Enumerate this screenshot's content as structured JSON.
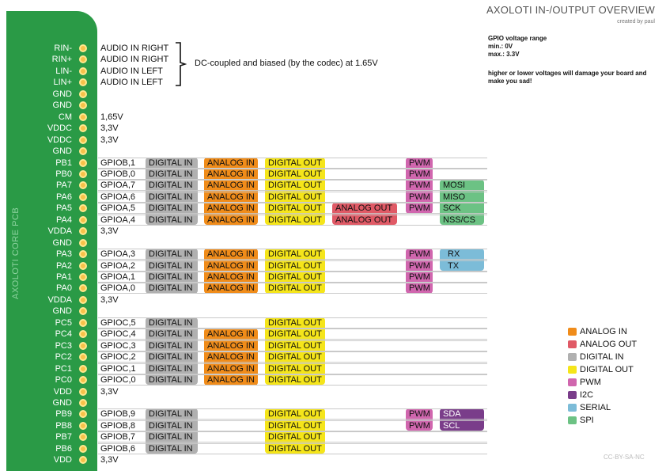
{
  "header": {
    "title": "AXOLOTI IN-/OUTPUT OVERVIEW",
    "credit": "created by paul"
  },
  "board_label": "AXOLOTI CORE PCB",
  "gpio_info": {
    "line1": "GPIO voltage range",
    "line2": "min.: 0V",
    "line3": "max.: 3.3V"
  },
  "warning": "higher or lower voltages will damage your board and make you sad!",
  "audio_note": "DC-coupled and biased (by the codec) at 1.65V",
  "pins": [
    {
      "name": "RIN-",
      "desc": "AUDIO IN RIGHT"
    },
    {
      "name": "RIN+",
      "desc": "AUDIO IN RIGHT"
    },
    {
      "name": "LIN-",
      "desc": "AUDIO IN LEFT"
    },
    {
      "name": "LIN+",
      "desc": "AUDIO IN LEFT"
    },
    {
      "name": "GND",
      "desc": ""
    },
    {
      "name": "GND",
      "desc": ""
    },
    {
      "name": "CM",
      "desc": "1,65V"
    },
    {
      "name": "VDDC",
      "desc": "3,3V"
    },
    {
      "name": "VDDC",
      "desc": "3,3V"
    },
    {
      "name": "GND",
      "desc": ""
    },
    {
      "name": "PB1",
      "desc": "GPIOB,1",
      "funcs": [
        "DIGITAL IN",
        "ANALOG IN",
        "DIGITAL OUT",
        "",
        "PWM",
        ""
      ]
    },
    {
      "name": "PB0",
      "desc": "GPIOB,0",
      "funcs": [
        "DIGITAL IN",
        "ANALOG IN",
        "DIGITAL OUT",
        "",
        "PWM",
        ""
      ]
    },
    {
      "name": "PA7",
      "desc": "GPIOA,7",
      "funcs": [
        "DIGITAL IN",
        "ANALOG IN",
        "DIGITAL OUT",
        "",
        "PWM",
        "MOSI"
      ]
    },
    {
      "name": "PA6",
      "desc": "GPIOA,6",
      "funcs": [
        "DIGITAL IN",
        "ANALOG IN",
        "DIGITAL OUT",
        "",
        "PWM",
        "MISO"
      ]
    },
    {
      "name": "PA5",
      "desc": "GPIOA,5",
      "funcs": [
        "DIGITAL IN",
        "ANALOG IN",
        "DIGITAL OUT",
        "ANALOG OUT",
        "PWM",
        "SCK"
      ]
    },
    {
      "name": "PA4",
      "desc": "GPIOA,4",
      "funcs": [
        "DIGITAL IN",
        "ANALOG IN",
        "DIGITAL OUT",
        "ANALOG OUT",
        "",
        "NSS/CS"
      ]
    },
    {
      "name": "VDDA",
      "desc": "3,3V"
    },
    {
      "name": "GND",
      "desc": ""
    },
    {
      "name": "PA3",
      "desc": "GPIOA,3",
      "funcs": [
        "DIGITAL IN",
        "ANALOG IN",
        "DIGITAL OUT",
        "",
        "PWM",
        "RX"
      ]
    },
    {
      "name": "PA2",
      "desc": "GPIOA,2",
      "funcs": [
        "DIGITAL IN",
        "ANALOG IN",
        "DIGITAL OUT",
        "",
        "PWM",
        "TX"
      ]
    },
    {
      "name": "PA1",
      "desc": "GPIOA,1",
      "funcs": [
        "DIGITAL IN",
        "ANALOG IN",
        "DIGITAL OUT",
        "",
        "PWM",
        ""
      ]
    },
    {
      "name": "PA0",
      "desc": "GPIOA,0",
      "funcs": [
        "DIGITAL IN",
        "ANALOG IN",
        "DIGITAL OUT",
        "",
        "PWM",
        ""
      ]
    },
    {
      "name": "VDDA",
      "desc": "3,3V"
    },
    {
      "name": "GND",
      "desc": ""
    },
    {
      "name": "PC5",
      "desc": "GPIOC,5",
      "funcs": [
        "DIGITAL IN",
        "",
        "DIGITAL OUT",
        "",
        "",
        ""
      ]
    },
    {
      "name": "PC4",
      "desc": "GPIOC,4",
      "funcs": [
        "DIGITAL IN",
        "ANALOG IN",
        "DIGITAL OUT",
        "",
        "",
        ""
      ]
    },
    {
      "name": "PC3",
      "desc": "GPIOC,3",
      "funcs": [
        "DIGITAL IN",
        "ANALOG IN",
        "DIGITAL OUT",
        "",
        "",
        ""
      ]
    },
    {
      "name": "PC2",
      "desc": "GPIOC,2",
      "funcs": [
        "DIGITAL IN",
        "ANALOG IN",
        "DIGITAL OUT",
        "",
        "",
        ""
      ]
    },
    {
      "name": "PC1",
      "desc": "GPIOC,1",
      "funcs": [
        "DIGITAL IN",
        "ANALOG IN",
        "DIGITAL OUT",
        "",
        "",
        ""
      ]
    },
    {
      "name": "PC0",
      "desc": "GPIOC,0",
      "funcs": [
        "DIGITAL IN",
        "ANALOG IN",
        "DIGITAL OUT",
        "",
        "",
        ""
      ]
    },
    {
      "name": "VDD",
      "desc": "3,3V"
    },
    {
      "name": "GND",
      "desc": ""
    },
    {
      "name": "PB9",
      "desc": "GPIOB,9",
      "funcs": [
        "DIGITAL IN",
        "",
        "DIGITAL OUT",
        "",
        "PWM",
        "SDA"
      ]
    },
    {
      "name": "PB8",
      "desc": "GPIOB,8",
      "funcs": [
        "DIGITAL IN",
        "",
        "DIGITAL OUT",
        "",
        "PWM",
        "SCL"
      ]
    },
    {
      "name": "PB7",
      "desc": "GPIOB,7",
      "funcs": [
        "DIGITAL IN",
        "",
        "DIGITAL OUT",
        "",
        "",
        ""
      ]
    },
    {
      "name": "PB6",
      "desc": "GPIOB,6",
      "funcs": [
        "DIGITAL IN",
        "",
        "DIGITAL OUT",
        "",
        "",
        ""
      ]
    },
    {
      "name": "VDD",
      "desc": "3,3V"
    }
  ],
  "legend": [
    {
      "label": "ANALOG IN",
      "color": "#f08c1a"
    },
    {
      "label": "ANALOG OUT",
      "color": "#e05a66"
    },
    {
      "label": "DIGITAL IN",
      "color": "#b0b0b0"
    },
    {
      "label": "DIGITAL OUT",
      "color": "#f5e51a"
    },
    {
      "label": "PWM",
      "color": "#d066ae"
    },
    {
      "label": "I2C",
      "color": "#7a3d8a"
    },
    {
      "label": "SERIAL",
      "color": "#7cbcd8"
    },
    {
      "label": "SPI",
      "color": "#6cc284"
    }
  ],
  "license": "CC-BY-SA-NC"
}
